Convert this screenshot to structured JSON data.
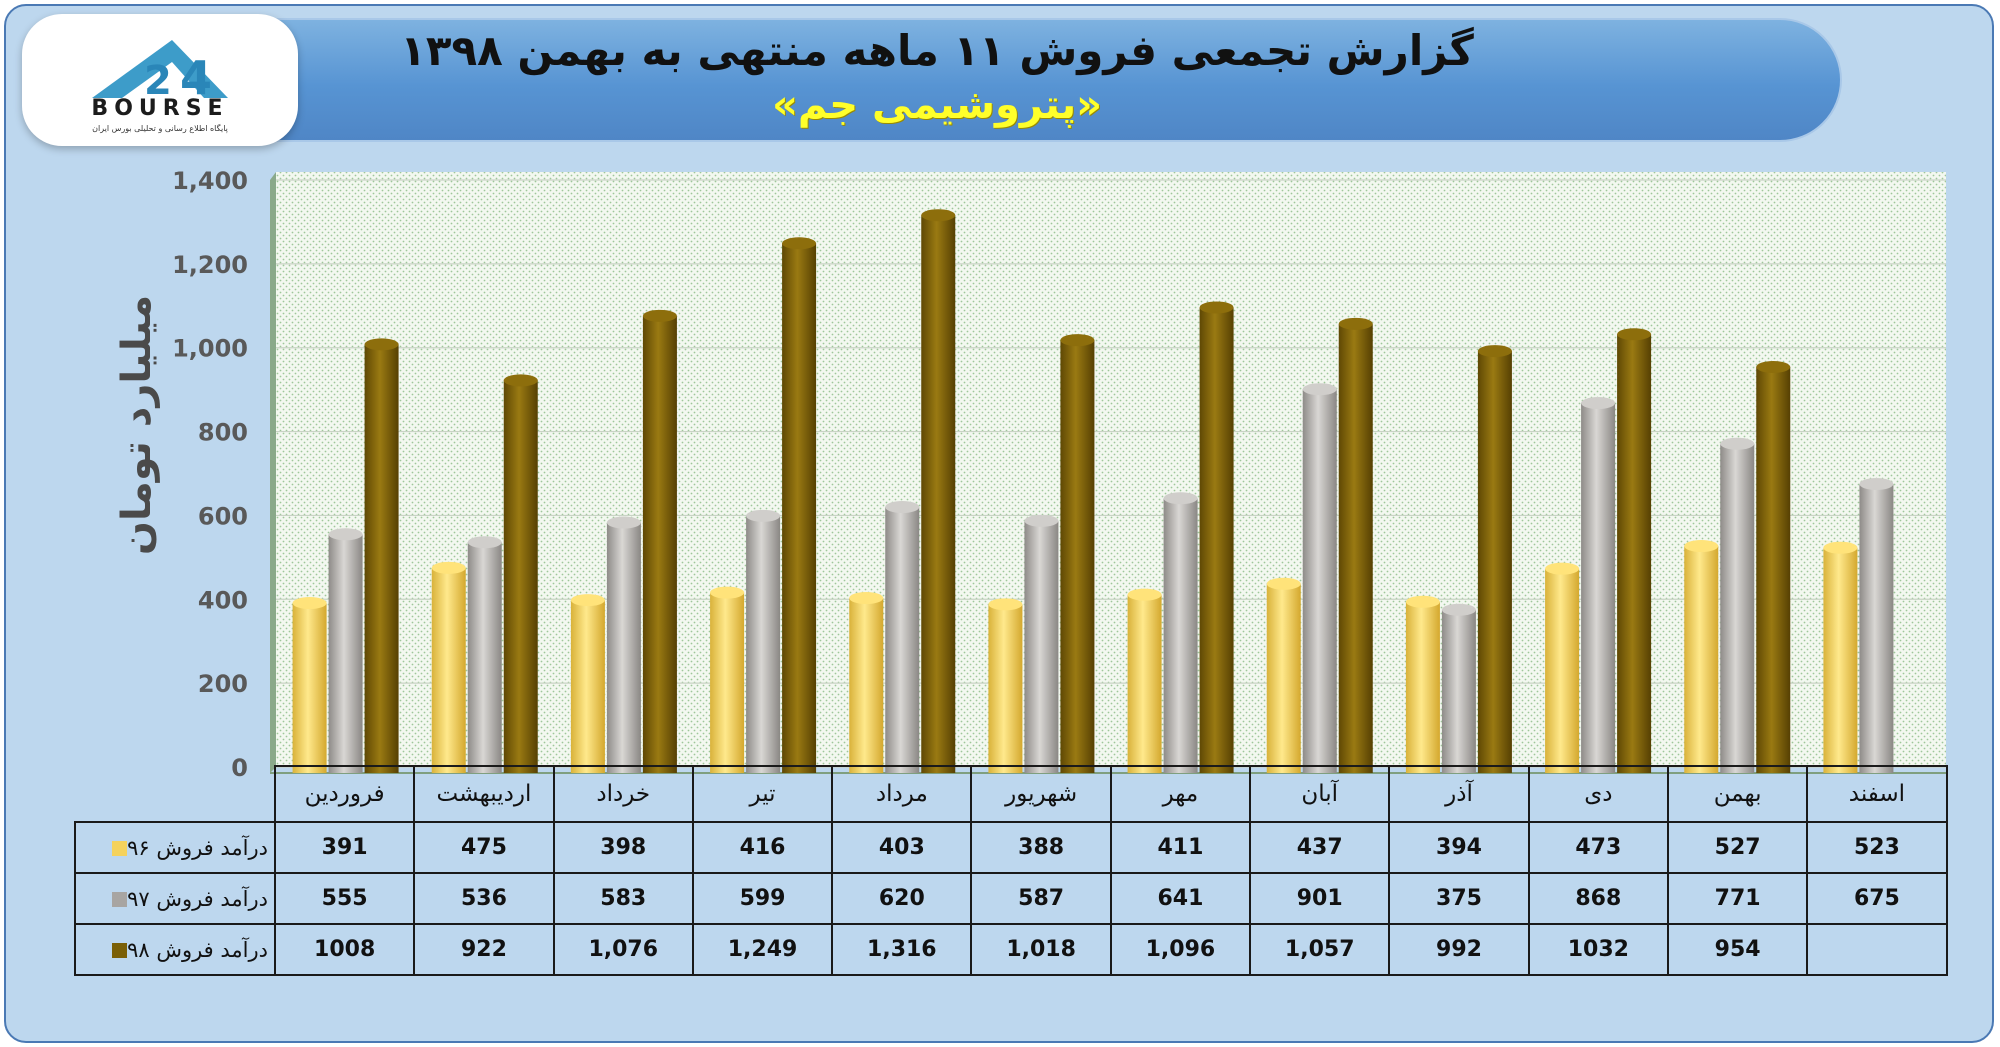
{
  "header": {
    "title": "گزارش تجمعی فروش ۱۱ ماهه منتهی به بهمن ۱۳۹۸",
    "subtitle": "«پتروشیمی جم»"
  },
  "logo": {
    "text": "BOURSE",
    "tagline": "پایگاه اطلاع رسانی و تحلیلی بورس ایران"
  },
  "colors": {
    "series_96": "#f5d25c",
    "series_97": "#a8a5a2",
    "series_98": "#7a5f06",
    "plot_background": "#eef5ea",
    "frame_background": "#bdd7ee"
  },
  "chart_data": {
    "type": "bar",
    "ylabel": "میلیارد تومان",
    "ylim": [
      0,
      1400
    ],
    "yticks": [
      0,
      200,
      400,
      600,
      800,
      1000,
      1200,
      1400
    ],
    "ytick_labels": [
      "0",
      "200",
      "400",
      "600",
      "800",
      "1,000",
      "1,200",
      "1,400"
    ],
    "grid": true,
    "categories": [
      "فروردین",
      "اردیبهشت",
      "خرداد",
      "تیر",
      "مرداد",
      "شهریور",
      "مهر",
      "آبان",
      "آذر",
      "دی",
      "بهمن",
      "اسفند"
    ],
    "series": [
      {
        "name": "درآمد فروش ۹۶",
        "color": "#f5d25c",
        "values": [
          391,
          475,
          398,
          416,
          403,
          388,
          411,
          437,
          394,
          473,
          527,
          523
        ],
        "labels": [
          "391",
          "475",
          "398",
          "416",
          "403",
          "388",
          "411",
          "437",
          "394",
          "473",
          "527",
          "523"
        ]
      },
      {
        "name": "درآمد فروش ۹۷",
        "color": "#a8a5a2",
        "values": [
          555,
          536,
          583,
          599,
          620,
          587,
          641,
          901,
          375,
          868,
          771,
          675
        ],
        "labels": [
          "555",
          "536",
          "583",
          "599",
          "620",
          "587",
          "641",
          "901",
          "375",
          "868",
          "771",
          "675"
        ]
      },
      {
        "name": "درآمد فروش ۹۸",
        "color": "#7a5f06",
        "values": [
          1008,
          922,
          1076,
          1249,
          1316,
          1018,
          1096,
          1057,
          992,
          1032,
          954,
          null
        ],
        "labels": [
          "1008",
          "922",
          "1,076",
          "1,249",
          "1,316",
          "1,018",
          "1,096",
          "1,057",
          "992",
          "1032",
          "954",
          ""
        ]
      }
    ]
  }
}
